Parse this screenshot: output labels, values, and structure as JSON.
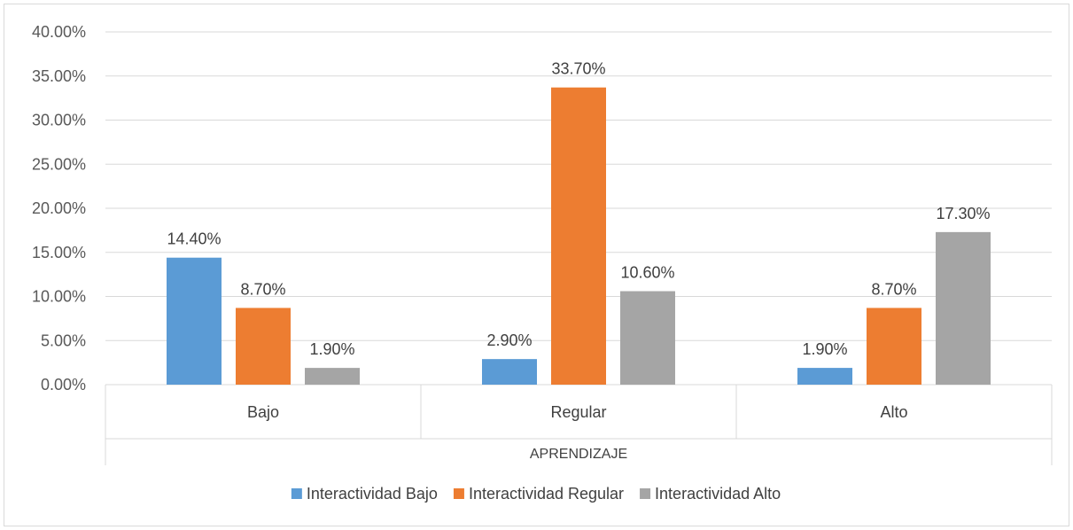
{
  "chart_data": {
    "type": "bar",
    "title": "",
    "xlabel": "APRENDIZAJE",
    "ylabel": "",
    "ylim": [
      0,
      40
    ],
    "yticks": [
      "0.00%",
      "5.00%",
      "10.00%",
      "15.00%",
      "20.00%",
      "25.00%",
      "30.00%",
      "35.00%",
      "40.00%"
    ],
    "categories": [
      "Bajo",
      "Regular",
      "Alto"
    ],
    "series": [
      {
        "name": "Interactividad Bajo",
        "color": "#5B9BD5",
        "values": [
          14.4,
          2.9,
          1.9
        ],
        "labels": [
          "14.40%",
          "2.90%",
          "1.90%"
        ]
      },
      {
        "name": "Interactividad Regular",
        "color": "#ED7D31",
        "values": [
          8.7,
          33.7,
          8.7
        ],
        "labels": [
          "8.70%",
          "33.70%",
          "8.70%"
        ]
      },
      {
        "name": "Interactividad Alto",
        "color": "#A5A5A5",
        "values": [
          1.9,
          10.6,
          17.3
        ],
        "labels": [
          "1.90%",
          "10.60%",
          "17.30%"
        ]
      }
    ],
    "grid": true,
    "legend_position": "bottom"
  }
}
